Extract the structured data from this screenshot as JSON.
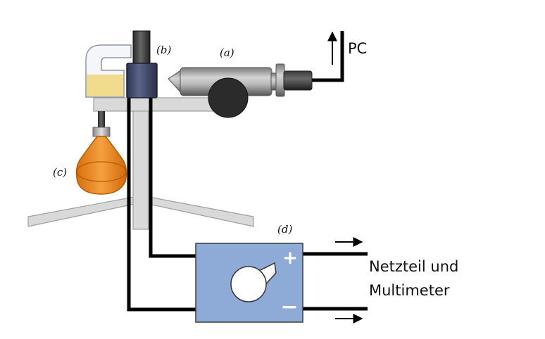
{
  "labels": {
    "a": "(a)",
    "b": "(b)",
    "c": "(c)",
    "d": "(d)",
    "pc": "PC",
    "power_line1": "Netzteil und",
    "power_line2": "Multimeter",
    "plus": "+",
    "minus": "−"
  },
  "colors": {
    "stand": "#d9d9d9",
    "stand_edge": "#9e9e9e",
    "wire": "#000000",
    "box_fill": "#8eaad6",
    "box_edge": "#3c3c3c",
    "flask_orange": "#f08c1e",
    "liquid": "#f0dc8c",
    "holder": "#454e6e",
    "knob": "#2b2b2b"
  }
}
